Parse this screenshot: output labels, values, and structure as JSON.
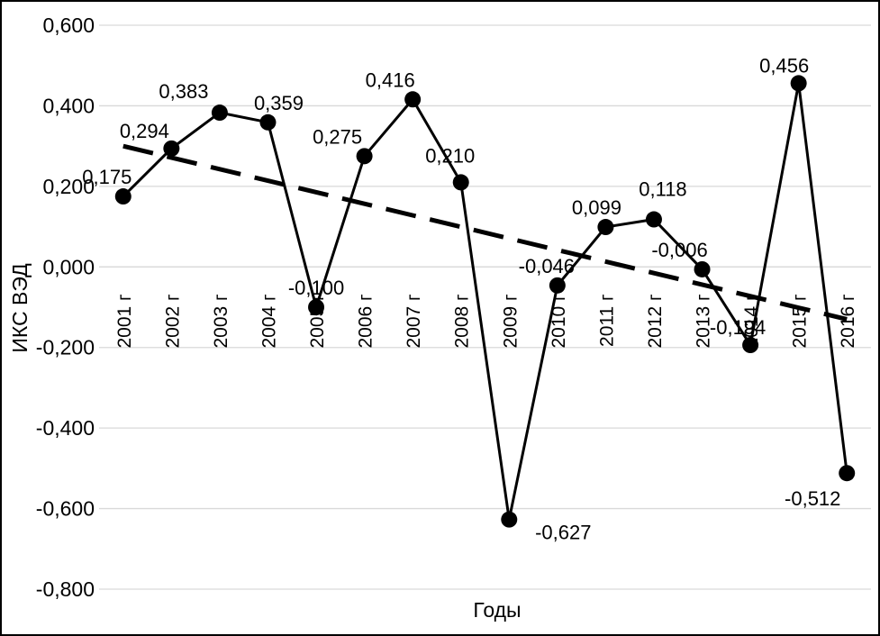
{
  "chart_data": {
    "type": "line",
    "xlabel": "Годы",
    "ylabel": "ИКС ВЭД",
    "ylim": [
      -0.8,
      0.6
    ],
    "yticks": [
      "0,600",
      "0,400",
      "0,200",
      "0,000",
      "-0,200",
      "-0,400",
      "-0,600",
      "-0,800"
    ],
    "ytick_values": [
      0.6,
      0.4,
      0.2,
      0.0,
      -0.2,
      -0.4,
      -0.6,
      -0.8
    ],
    "grid": "horizontal",
    "categories": [
      "2001 г",
      "2002 г",
      "2003 г",
      "2004 г",
      "2005 г",
      "2006 г",
      "2007 г",
      "2008 г",
      "2009 г",
      "2010 г",
      "2011 г",
      "2012 г",
      "2013 г",
      "2014 г",
      "2015 г",
      "2016 г"
    ],
    "series": [
      {
        "values": [
          0.175,
          0.294,
          0.383,
          0.359,
          -0.1,
          0.275,
          0.416,
          0.21,
          -0.627,
          -0.046,
          0.099,
          0.118,
          -0.006,
          -0.194,
          0.456,
          -0.512
        ],
        "labels": [
          "0,175",
          "0,294",
          "0,383",
          "0,359",
          "-0,100",
          "0,275",
          "0,416",
          "0,210",
          "-0,627",
          "-0,046",
          "0,099",
          "0,118",
          "-0,006",
          "-0,194",
          "0,456",
          "-0,512"
        ],
        "color": "#000000",
        "style": "solid with circle markers"
      }
    ],
    "trendline": {
      "type": "linear",
      "start_value": 0.3,
      "end_value": -0.13,
      "color": "#000000",
      "style": "dashed"
    },
    "legend": "none"
  }
}
